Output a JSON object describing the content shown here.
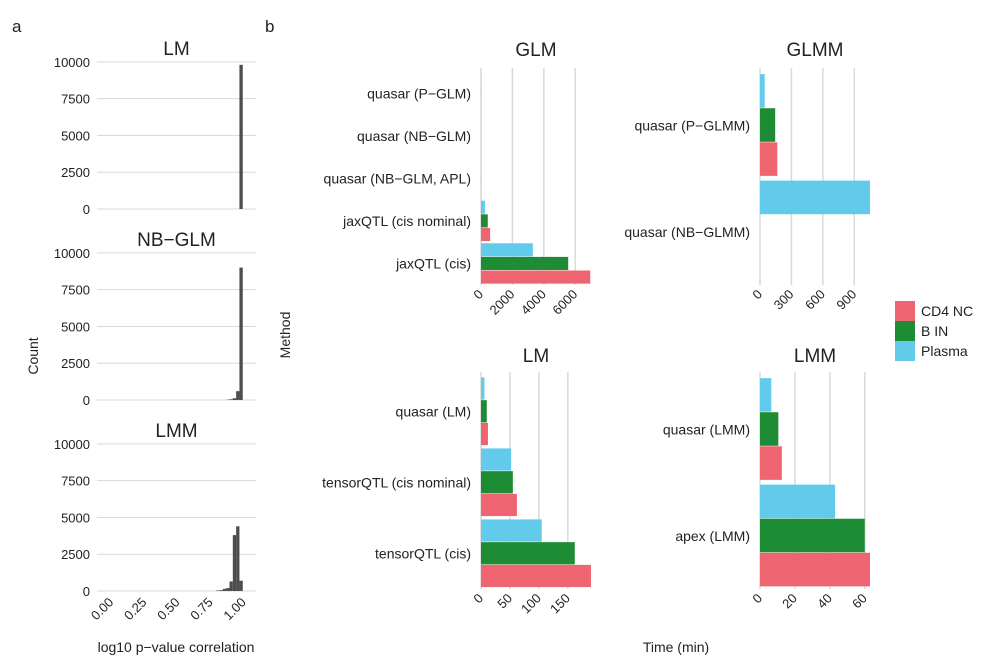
{
  "panel_labels": {
    "a": "a",
    "b": "b"
  },
  "colors": {
    "histogram_bar": "#4d4d4d",
    "grid": "#d9d9d9",
    "CD4 NC": "#ee6470",
    "B IN": "#1e8b35",
    "Plasma": "#62cbec"
  },
  "shared_labels": {
    "count": "Count",
    "correlation": "log10 p−value correlation",
    "method": "Method",
    "time": "Time (min)"
  },
  "legend": [
    "CD4 NC",
    "B IN",
    "Plasma"
  ],
  "chart_data": [
    {
      "type": "bar",
      "subtype": "histogram",
      "title": "LM",
      "ylabel": "Count",
      "xlabel": "log10 p−value correlation",
      "y_ticks": [
        0,
        2500,
        5000,
        7500,
        10000
      ],
      "y_tick_labels": [
        "0",
        "2500",
        "5000",
        "7500",
        "10000"
      ],
      "x_ticks": [
        0.0,
        0.25,
        0.5,
        0.75,
        1.0
      ],
      "x_tick_labels": [
        "0.00",
        "0.25",
        "0.50",
        "0.75",
        "1.00"
      ],
      "xlim": [
        -0.1,
        1.1
      ],
      "ylim": [
        0,
        10400
      ],
      "bin_width": 0.025,
      "bins": [
        {
          "x": 0.975,
          "count": 9800
        }
      ]
    },
    {
      "type": "bar",
      "subtype": "histogram",
      "title": "NB−GLM",
      "ylabel": "Count",
      "xlabel": "log10 p−value correlation",
      "y_ticks": [
        0,
        2500,
        5000,
        7500,
        10000
      ],
      "y_tick_labels": [
        "0",
        "2500",
        "5000",
        "7500",
        "10000"
      ],
      "x_ticks": [
        0.0,
        0.25,
        0.5,
        0.75,
        1.0
      ],
      "x_tick_labels": [
        "0.00",
        "0.25",
        "0.50",
        "0.75",
        "1.00"
      ],
      "xlim": [
        -0.1,
        1.1
      ],
      "ylim": [
        0,
        10400
      ],
      "bin_width": 0.025,
      "bins": [
        {
          "x": 0.875,
          "count": 20
        },
        {
          "x": 0.9,
          "count": 50
        },
        {
          "x": 0.925,
          "count": 120
        },
        {
          "x": 0.95,
          "count": 600
        },
        {
          "x": 0.975,
          "count": 9000
        }
      ]
    },
    {
      "type": "bar",
      "subtype": "histogram",
      "title": "LMM",
      "ylabel": "Count",
      "xlabel": "log10 p−value correlation",
      "y_ticks": [
        0,
        2500,
        5000,
        7500,
        10000
      ],
      "y_tick_labels": [
        "0",
        "2500",
        "5000",
        "7500",
        "10000"
      ],
      "x_ticks": [
        0.0,
        0.25,
        0.5,
        0.75,
        1.0
      ],
      "x_tick_labels": [
        "0.00",
        "0.25",
        "0.50",
        "0.75",
        "1.00"
      ],
      "xlim": [
        -0.1,
        1.1
      ],
      "ylim": [
        0,
        10400
      ],
      "bin_width": 0.025,
      "bins": [
        {
          "x": 0.8,
          "count": 40
        },
        {
          "x": 0.825,
          "count": 60
        },
        {
          "x": 0.85,
          "count": 150
        },
        {
          "x": 0.875,
          "count": 200
        },
        {
          "x": 0.9,
          "count": 650
        },
        {
          "x": 0.925,
          "count": 3800
        },
        {
          "x": 0.95,
          "count": 4400
        },
        {
          "x": 0.975,
          "count": 700
        }
      ]
    },
    {
      "type": "bar",
      "orientation": "horizontal",
      "title": "GLM",
      "ylabel": "Method",
      "xlabel": "Time (min)",
      "categories": [
        "quasar (P−GLM)",
        "quasar (NB−GLM)",
        "quasar (NB−GLM, APL)",
        "jaxQTL (cis nominal)",
        "jaxQTL (cis)"
      ],
      "series": [
        {
          "name": "Plasma",
          "values": [
            5,
            5,
            5,
            250,
            3300
          ]
        },
        {
          "name": "B IN",
          "values": [
            5,
            5,
            5,
            430,
            5550
          ]
        },
        {
          "name": "CD4 NC",
          "values": [
            5,
            5,
            5,
            580,
            6950
          ]
        }
      ],
      "x_ticks": [
        0,
        2000,
        4000,
        6000
      ],
      "x_tick_labels": [
        "0",
        "2000",
        "4000",
        "6000"
      ],
      "xlim": [
        0,
        7000
      ]
    },
    {
      "type": "bar",
      "orientation": "horizontal",
      "title": "GLMM",
      "ylabel": "Method",
      "xlabel": "Time (min)",
      "categories": [
        "quasar (P−GLMM)",
        "quasar (NB−GLMM)"
      ],
      "series": [
        {
          "name": "Plasma",
          "values": [
            45,
            1050
          ]
        },
        {
          "name": "B IN",
          "values": [
            145,
            0
          ]
        },
        {
          "name": "CD4 NC",
          "values": [
            165,
            0
          ]
        }
      ],
      "x_ticks": [
        0,
        300,
        600,
        900
      ],
      "x_tick_labels": [
        "0",
        "300",
        "600",
        "900"
      ],
      "xlim": [
        0,
        1050
      ]
    },
    {
      "type": "bar",
      "orientation": "horizontal",
      "title": "LM",
      "ylabel": "Method",
      "xlabel": "Time (min)",
      "categories": [
        "quasar (LM)",
        "tensorQTL (cis nominal)",
        "tensorQTL (cis)"
      ],
      "series": [
        {
          "name": "Plasma",
          "values": [
            6,
            52,
            105
          ]
        },
        {
          "name": "B IN",
          "values": [
            10,
            55,
            162
          ]
        },
        {
          "name": "CD4 NC",
          "values": [
            12,
            62,
            190
          ]
        }
      ],
      "x_ticks": [
        0,
        50,
        100,
        150
      ],
      "x_tick_labels": [
        "0",
        "50",
        "100",
        "150"
      ],
      "xlim": [
        0,
        190
      ]
    },
    {
      "type": "bar",
      "orientation": "horizontal",
      "title": "LMM",
      "ylabel": "Method",
      "xlabel": "Time (min)",
      "categories": [
        "quasar (LMM)",
        "apex (LMM)"
      ],
      "series": [
        {
          "name": "Plasma",
          "values": [
            6.5,
            43
          ]
        },
        {
          "name": "B IN",
          "values": [
            10.5,
            60
          ]
        },
        {
          "name": "CD4 NC",
          "values": [
            12.5,
            63
          ]
        }
      ],
      "x_ticks": [
        0,
        20,
        40,
        60
      ],
      "x_tick_labels": [
        "0",
        "20",
        "40",
        "60"
      ],
      "xlim": [
        0,
        63
      ]
    }
  ]
}
